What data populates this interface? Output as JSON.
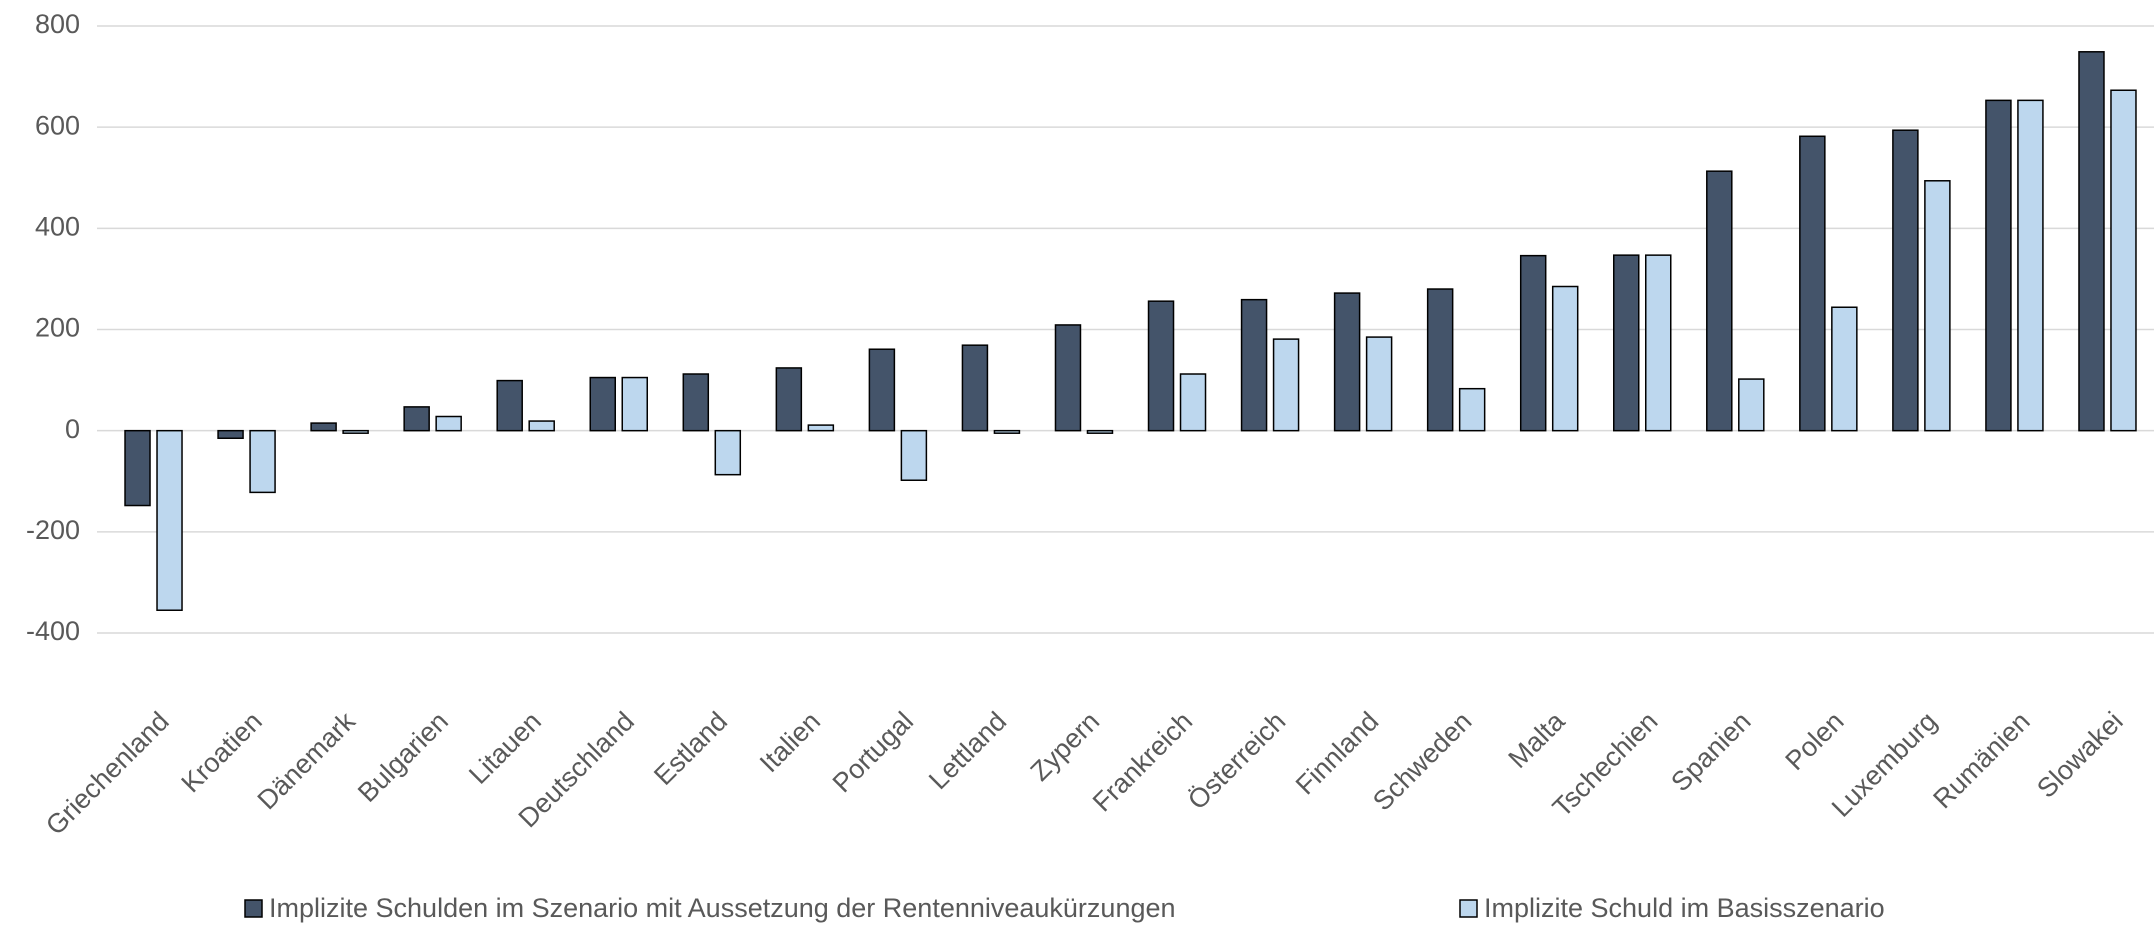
{
  "chart_data": {
    "type": "bar",
    "categories": [
      "Griechenland",
      "Kroatien",
      "Dänemark",
      "Bulgarien",
      "Litauen",
      "Deutschland",
      "Estland",
      "Italien",
      "Portugal",
      "Lettland",
      "Zypern",
      "Frankreich",
      "Österreich",
      "Finnland",
      "Schweden",
      "Malta",
      "Tschechien",
      "Spanien",
      "Polen",
      "Luxemburg",
      "Rumänien",
      "Slowakei"
    ],
    "series": [
      {
        "name": "Implizite Schulden im Szenario mit Aussetzung der Rentenniveaukürzungen",
        "color": "#44546a",
        "values": [
          -148,
          -15,
          15,
          47,
          99,
          105,
          112,
          124,
          161,
          169,
          209,
          256,
          259,
          272,
          280,
          346,
          347,
          513,
          582,
          594,
          653,
          749
        ]
      },
      {
        "name": "Implizite Schuld im Basisszenario",
        "color": "#bdd7ee",
        "values": [
          -355,
          -122,
          -5,
          28,
          19,
          105,
          -87,
          11,
          -98,
          -5,
          -5,
          112,
          181,
          185,
          83,
          285,
          347,
          102,
          244,
          494,
          653,
          673
        ]
      }
    ],
    "ylim": [
      -400,
      800
    ],
    "yticks": [
      -400,
      -200,
      0,
      200,
      400,
      600,
      800
    ],
    "grid": true,
    "legend": "bottom"
  }
}
